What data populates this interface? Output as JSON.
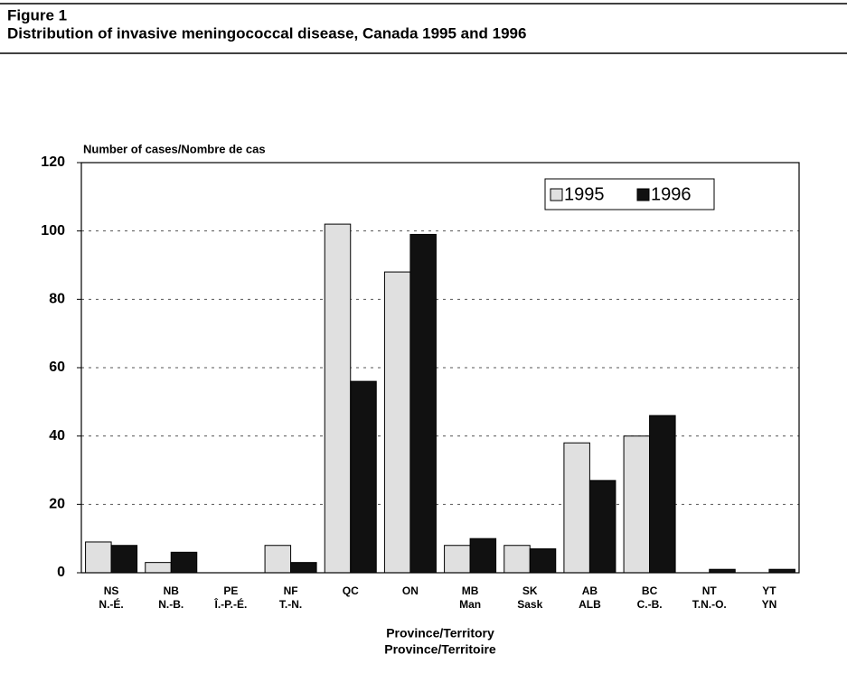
{
  "figure_label": "Figure 1",
  "chart_data": {
    "type": "bar",
    "title": "Distribution of invasive meningococcal disease, Canada 1995 and 1996",
    "ylabel": "Number of cases/Nombre de cas",
    "xlabel": [
      "Province/Territory",
      "Province/Territoire"
    ],
    "categories": [
      [
        "NS",
        "N.-É."
      ],
      [
        "NB",
        "N.-B."
      ],
      [
        "PE",
        "Î.-P.-É."
      ],
      [
        "NF",
        "T.-N."
      ],
      [
        "QC"
      ],
      [
        "ON"
      ],
      [
        "MB",
        "Man"
      ],
      [
        "SK",
        "Sask"
      ],
      [
        "AB",
        "ALB"
      ],
      [
        "BC",
        "C.-B."
      ],
      [
        "NT",
        "T.N.-O."
      ],
      [
        "YT",
        "YN"
      ]
    ],
    "series": [
      {
        "name": "1995",
        "color": "#e0e0e0",
        "values": [
          9,
          3,
          0,
          8,
          102,
          88,
          8,
          8,
          38,
          40,
          0,
          0
        ]
      },
      {
        "name": "1996",
        "color": "#111111",
        "values": [
          8,
          6,
          0,
          3,
          56,
          99,
          10,
          7,
          27,
          46,
          1,
          1
        ]
      }
    ],
    "ylim": [
      0,
      120
    ],
    "yticks": [
      0,
      20,
      40,
      60,
      80,
      100,
      120
    ],
    "grid": true,
    "legend": "upper right"
  }
}
